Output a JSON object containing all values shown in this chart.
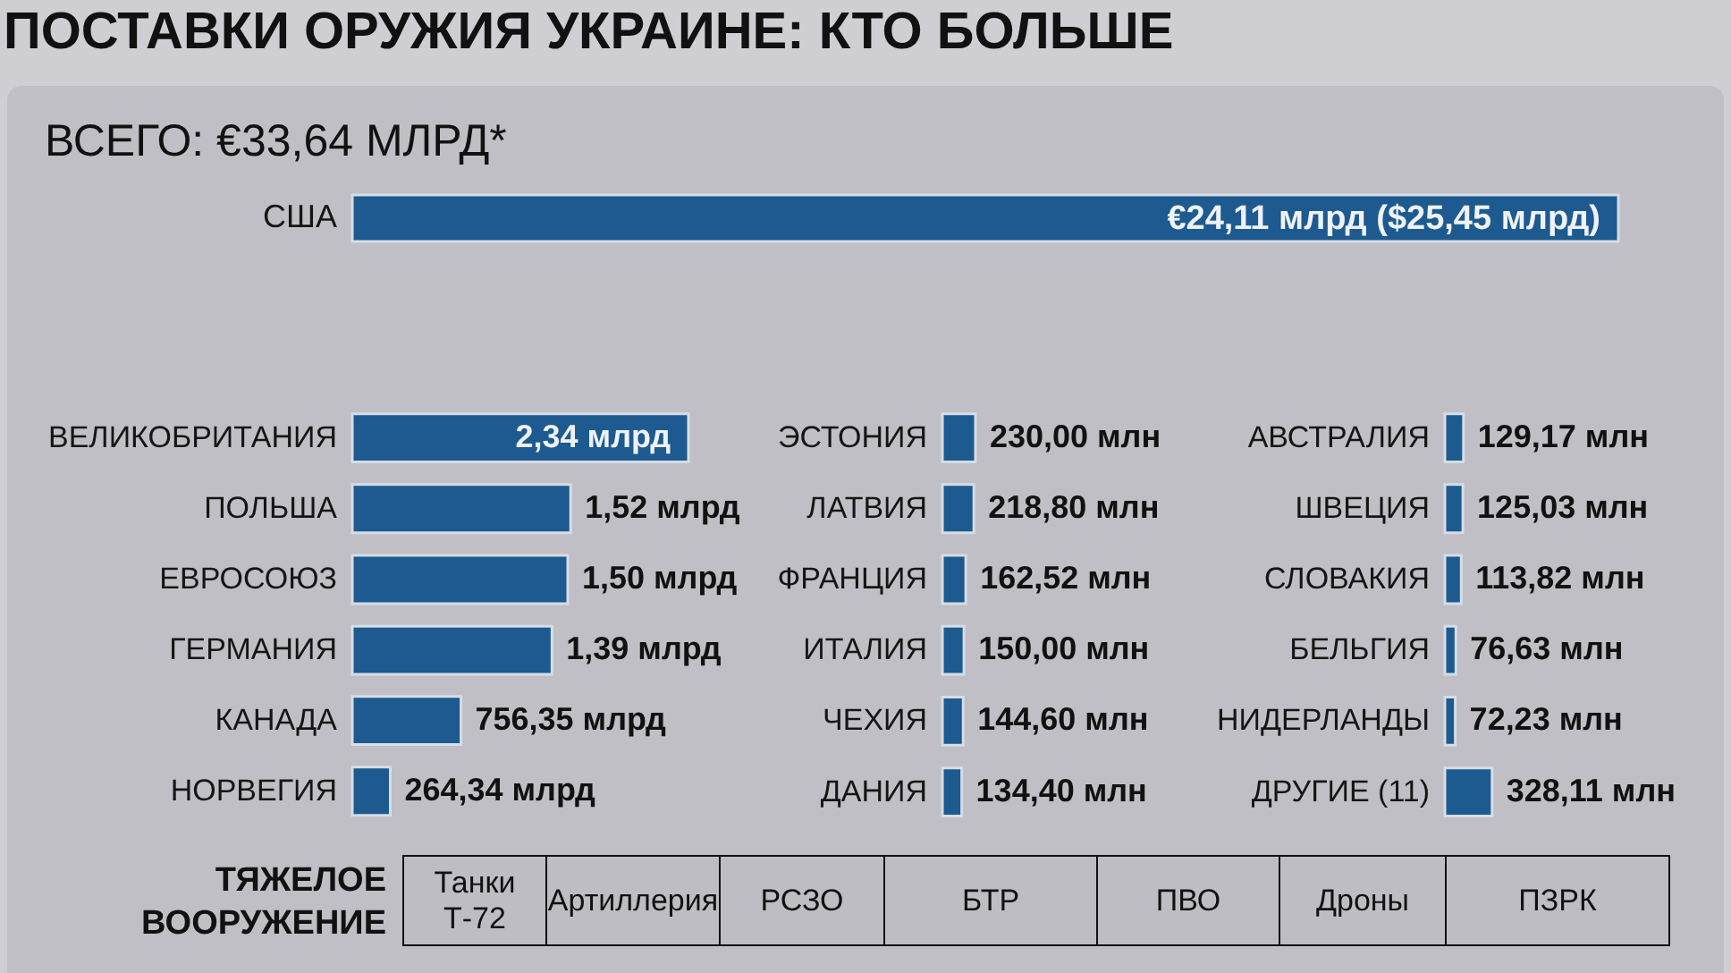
{
  "chart_data": [
    {
      "type": "bar",
      "title": "ПОСТАВКИ ОРУЖИЯ УКРАИНЕ: КТО БОЛЬШЕ",
      "subtitle": "ВСЕГО: €33,64 МЛРД*",
      "orientation": "horizontal",
      "categories": [
        "США"
      ],
      "values": [
        24.11
      ],
      "value_labels": [
        "€24,11 млрд ($25,45 млрд)"
      ],
      "color": "#1d5a8f",
      "tick_labels": "y"
    },
    {
      "type": "bar",
      "orientation": "horizontal",
      "categories": [
        "ВЕЛИКОБРИТАНИЯ",
        "ПОЛЬША",
        "ЕВРОСОЮЗ",
        "ГЕРМАНИЯ"
      ],
      "values": [
        2.34,
        1.52,
        1.5,
        1.39
      ],
      "value_labels": [
        "2,34 млрд",
        "1,52 млрд",
        "1,50 млрд",
        "1,39 млрд"
      ],
      "color": "#1d5a8f",
      "tick_labels": "y"
    },
    {
      "type": "bar",
      "orientation": "horizontal",
      "categories": [
        "КАНАДА",
        "НОРВЕГИЯ"
      ],
      "values": [
        756.35,
        264.34
      ],
      "value_labels": [
        "756,35 млрд",
        "264,34 млрд"
      ],
      "color": "#1d5a8f",
      "tick_labels": "y"
    },
    {
      "type": "bar",
      "orientation": "horizontal",
      "categories": [
        "ЭСТОНИЯ",
        "ЛАТВИЯ",
        "ФРАНЦИЯ",
        "ИТАЛИЯ",
        "ЧЕХИЯ",
        "ДАНИЯ"
      ],
      "values": [
        230,
        218.8,
        162.52,
        150,
        144.6,
        134.4
      ],
      "value_labels": [
        "230,00 млн",
        "218,80 млн",
        "162,52 млн",
        "150,00 млн",
        "144,60 млн",
        "134,40 млн"
      ],
      "color": "#1d5a8f",
      "tick_labels": "y"
    },
    {
      "type": "bar",
      "orientation": "horizontal",
      "categories": [
        "АВСТРАЛИЯ",
        "ШВЕЦИЯ",
        "СЛОВАКИЯ",
        "БЕЛЬГИЯ",
        "НИДЕРЛАНДЫ",
        "ДРУГИЕ (11)"
      ],
      "values": [
        129.17,
        125.03,
        113.82,
        76.63,
        72.23,
        328.11
      ],
      "value_labels": [
        "129,17 млн",
        "125,03 млн",
        "113,82 млн",
        "76,63 млн",
        "72,23 млн",
        "328,11 млн"
      ],
      "color": "#1d5a8f",
      "tick_labels": "y"
    },
    {
      "type": "other",
      "title": "ТЯЖЕЛОЕ ВООРУЖЕНИЕ",
      "annotations": [
        "Танки Т-72",
        "Артиллерия",
        "РСЗО",
        "БТР",
        "ПВО",
        "Дроны",
        "ПЗРК"
      ]
    }
  ]
}
